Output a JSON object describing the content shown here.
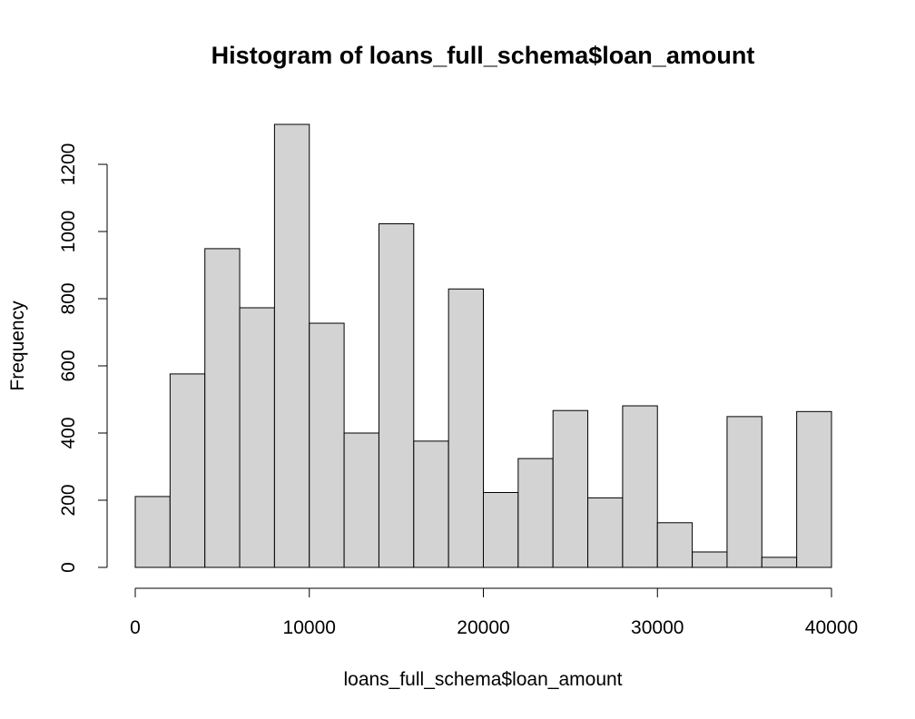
{
  "chart_data": {
    "type": "bar",
    "title": "Histogram of loans_full_schema$loan_amount",
    "xlabel": "loans_full_schema$loan_amount",
    "ylabel": "Frequency",
    "bin_edges": [
      0,
      2000,
      4000,
      6000,
      8000,
      10000,
      12000,
      14000,
      16000,
      18000,
      20000,
      22000,
      24000,
      26000,
      28000,
      30000,
      32000,
      34000,
      36000,
      38000,
      40000
    ],
    "values": [
      211,
      576,
      949,
      773,
      1319,
      727,
      400,
      1023,
      376,
      829,
      223,
      324,
      467,
      207,
      481,
      133,
      46,
      449,
      30,
      464
    ],
    "xlim": [
      0,
      40000
    ],
    "ylim": [
      0,
      1319
    ],
    "xticks": [
      0,
      10000,
      20000,
      30000,
      40000
    ],
    "xtick_labels": [
      "0",
      "10000",
      "20000",
      "30000",
      "40000"
    ],
    "yticks": [
      0,
      200,
      400,
      600,
      800,
      1000,
      1200
    ],
    "ytick_labels": [
      "0",
      "200",
      "400",
      "600",
      "800",
      "1000",
      "1200"
    ],
    "grid": false,
    "colors": {
      "bar_fill": "#d3d3d3",
      "bar_edge": "#000000",
      "background": "#ffffff"
    }
  }
}
